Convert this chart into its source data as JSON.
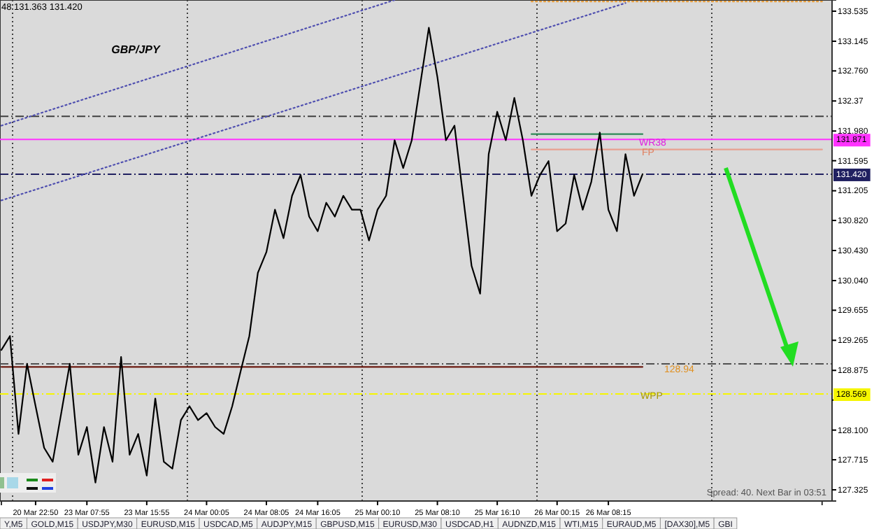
{
  "chart_data": {
    "type": "line",
    "title": "GBP/JPY",
    "categories": [
      null,
      null,
      null,
      null,
      "20 Mar 22:50",
      null,
      null,
      null,
      null,
      null,
      "23 Mar 07:55",
      null,
      null,
      null,
      null,
      null,
      null,
      "23 Mar 15:55",
      null,
      null,
      null,
      null,
      null,
      null,
      "24 Mar 00:05",
      null,
      null,
      null,
      null,
      null,
      null,
      "24 Mar 08:05",
      null,
      null,
      null,
      null,
      null,
      "24 Mar 16:05",
      null,
      null,
      null,
      null,
      null,
      null,
      "25 Mar 00:10",
      null,
      null,
      null,
      null,
      null,
      null,
      "25 Mar 08:10",
      null,
      null,
      null,
      null,
      null,
      null,
      "25 Mar 16:10",
      null,
      null,
      null,
      null,
      null,
      null,
      "26 Mar 00:15",
      null,
      null,
      null,
      null,
      null,
      "26 Mar 08:15",
      null,
      null,
      null,
      null,
      null,
      null,
      null,
      null,
      null,
      null,
      null,
      null,
      null,
      null,
      null,
      null,
      null,
      null,
      null,
      null,
      null,
      null,
      null,
      null,
      null
    ],
    "ylim": [
      127.18,
      133.68
    ],
    "yticks": [
      133.535,
      133.145,
      {
        "value": 132.76,
        "label": "132.760"
      },
      132.37,
      {
        "value": 131.98,
        "label": "131.980"
      },
      131.595,
      131.205,
      {
        "value": 130.82,
        "label": "130.820"
      },
      {
        "value": 130.43,
        "label": "130.430"
      },
      {
        "value": 130.04,
        "label": "130.040"
      },
      129.655,
      129.265,
      128.875,
      {
        "value": 128.49,
        "label": null
      },
      {
        "value": 128.1,
        "label": "128.100"
      },
      127.715,
      127.325
    ],
    "series": [
      {
        "color": "#000000",
        "line_style": "solid",
        "values": [
          129.14,
          129.32,
          128.05,
          128.96,
          128.41,
          127.87,
          127.69,
          128.32,
          128.96,
          127.78,
          128.14,
          127.42,
          128.14,
          127.69,
          129.05,
          127.78,
          128.05,
          127.51,
          128.51,
          127.69,
          127.6,
          128.23,
          128.41,
          128.23,
          128.32,
          128.14,
          128.05,
          128.41,
          128.87,
          129.32,
          130.14,
          130.41,
          130.96,
          130.59,
          131.14,
          131.41,
          130.87,
          130.68,
          131.05,
          130.87,
          131.14,
          130.96,
          130.96,
          130.56,
          130.96,
          131.14,
          131.86,
          131.5,
          131.86,
          132.59,
          133.32,
          132.68,
          131.86,
          132.05,
          131.14,
          130.23,
          129.87,
          131.68,
          132.23,
          131.86,
          132.41,
          131.86,
          131.14,
          131.41,
          131.59,
          130.68,
          130.78,
          131.41,
          130.96,
          131.32,
          131.96,
          130.96,
          130.68,
          131.68,
          131.14,
          131.42,
          null,
          null,
          null,
          null,
          null,
          null,
          null,
          null,
          null,
          null,
          null,
          null,
          null,
          null,
          null,
          null,
          null,
          null,
          null,
          null,
          null
        ]
      },
      {
        "color": "#5050b0",
        "line_style": "dotted",
        "values": [
          132.05,
          null,
          null,
          null,
          null,
          null,
          null,
          null,
          null,
          null,
          null,
          null,
          null,
          null,
          null,
          null,
          null,
          null,
          null,
          null,
          null,
          null,
          null,
          null,
          null,
          null,
          null,
          null,
          null,
          null,
          null,
          null,
          null,
          null,
          null,
          null,
          null,
          null,
          null,
          null,
          null,
          null,
          null,
          null,
          null,
          null,
          133.68,
          null,
          null,
          null,
          null,
          null,
          null,
          null,
          null,
          null,
          null,
          null,
          null,
          null,
          null,
          null,
          null,
          null,
          null,
          null,
          null,
          null,
          null,
          null,
          null,
          null,
          null,
          null,
          null,
          null,
          null,
          null,
          null,
          null,
          null,
          null,
          null,
          null,
          null,
          null,
          null,
          null,
          null,
          null,
          null,
          null,
          null,
          null,
          null,
          null,
          null
        ]
      },
      {
        "color": "#5050b0",
        "line_style": "dotted",
        "values": [
          131.08,
          null,
          null,
          null,
          null,
          null,
          null,
          null,
          null,
          null,
          null,
          null,
          null,
          null,
          null,
          null,
          null,
          null,
          null,
          null,
          null,
          null,
          null,
          null,
          null,
          null,
          null,
          null,
          null,
          null,
          null,
          null,
          null,
          null,
          null,
          null,
          null,
          null,
          null,
          null,
          null,
          null,
          null,
          null,
          null,
          null,
          null,
          null,
          null,
          null,
          null,
          null,
          null,
          null,
          null,
          null,
          null,
          null,
          null,
          null,
          null,
          null,
          null,
          null,
          null,
          null,
          null,
          null,
          null,
          null,
          null,
          null,
          null,
          133.64,
          null,
          null,
          null,
          null,
          null,
          null,
          null,
          null,
          null,
          null,
          null,
          null,
          null,
          null,
          null,
          null,
          null,
          null,
          null,
          null,
          null,
          null,
          null
        ]
      },
      {
        "color": "#2e8b57",
        "line_style": "solid",
        "values": [
          null,
          null,
          null,
          null,
          null,
          null,
          null,
          null,
          null,
          null,
          null,
          null,
          null,
          null,
          null,
          null,
          null,
          null,
          null,
          null,
          null,
          null,
          null,
          null,
          null,
          null,
          null,
          null,
          null,
          null,
          null,
          null,
          null,
          null,
          null,
          null,
          null,
          null,
          null,
          null,
          null,
          null,
          null,
          null,
          null,
          null,
          null,
          null,
          null,
          null,
          null,
          null,
          null,
          null,
          null,
          null,
          null,
          null,
          null,
          null,
          null,
          null,
          131.94,
          null,
          null,
          null,
          null,
          null,
          null,
          null,
          null,
          null,
          null,
          null,
          null,
          131.94,
          null,
          null,
          null,
          null,
          null,
          null,
          null,
          null,
          null,
          null,
          null,
          null,
          null,
          null,
          null,
          null,
          null,
          null,
          null,
          null,
          null
        ]
      },
      {
        "color": "#e8a090",
        "line_style": "solid",
        "values": [
          null,
          null,
          null,
          null,
          null,
          null,
          null,
          null,
          null,
          null,
          null,
          null,
          null,
          null,
          null,
          null,
          null,
          null,
          null,
          null,
          null,
          null,
          null,
          null,
          null,
          null,
          null,
          null,
          null,
          null,
          null,
          null,
          null,
          null,
          null,
          null,
          null,
          null,
          null,
          null,
          null,
          null,
          null,
          null,
          null,
          null,
          null,
          null,
          null,
          null,
          null,
          null,
          null,
          null,
          null,
          null,
          null,
          null,
          null,
          null,
          null,
          null,
          131.74,
          null,
          null,
          null,
          null,
          null,
          null,
          null,
          null,
          null,
          null,
          null,
          null,
          null,
          null,
          null,
          null,
          null,
          null,
          null,
          null,
          null,
          null,
          null,
          null,
          null,
          null,
          null,
          null,
          null,
          null,
          null,
          null,
          null,
          131.74
        ]
      },
      {
        "color": "#e8a040",
        "line_style": "dotted",
        "values": [
          null,
          null,
          null,
          null,
          null,
          null,
          null,
          null,
          null,
          null,
          null,
          null,
          null,
          null,
          null,
          null,
          null,
          null,
          null,
          null,
          null,
          null,
          null,
          null,
          null,
          null,
          null,
          null,
          null,
          null,
          null,
          null,
          null,
          null,
          null,
          null,
          null,
          null,
          null,
          null,
          null,
          null,
          null,
          null,
          null,
          null,
          null,
          null,
          null,
          null,
          null,
          null,
          null,
          null,
          null,
          null,
          null,
          null,
          null,
          null,
          null,
          null,
          133.66,
          null,
          null,
          null,
          null,
          null,
          null,
          null,
          null,
          null,
          null,
          null,
          null,
          null,
          null,
          null,
          null,
          null,
          null,
          null,
          null,
          null,
          null,
          null,
          null,
          null,
          null,
          null,
          null,
          null,
          null,
          null,
          null,
          null,
          133.66
        ]
      },
      {
        "color": "#6b1a10",
        "line_style": "solid",
        "values": [
          128.92,
          null,
          null,
          null,
          null,
          null,
          null,
          null,
          null,
          null,
          null,
          null,
          null,
          null,
          null,
          null,
          null,
          null,
          null,
          null,
          null,
          null,
          null,
          null,
          null,
          null,
          null,
          null,
          null,
          null,
          null,
          null,
          null,
          null,
          null,
          null,
          null,
          null,
          null,
          null,
          null,
          null,
          null,
          null,
          null,
          null,
          null,
          null,
          null,
          null,
          null,
          null,
          null,
          null,
          null,
          null,
          null,
          null,
          null,
          null,
          null,
          null,
          null,
          null,
          null,
          null,
          null,
          null,
          null,
          null,
          null,
          null,
          null,
          null,
          null,
          128.92,
          null,
          null,
          null,
          null,
          null,
          null,
          null,
          null,
          null,
          null,
          null,
          null,
          null,
          null,
          null,
          null,
          null,
          null,
          null,
          null,
          null
        ]
      }
    ],
    "ref_lines": [
      {
        "axis": "y",
        "value": 132.17,
        "color": "#404040",
        "line_style": "dashed"
      },
      {
        "axis": "y",
        "value": 131.871,
        "label": "131.871",
        "color": "#ff33ff",
        "line_style": "solid"
      },
      {
        "axis": "y",
        "value": 131.42,
        "label": "131.420",
        "color": "#202060",
        "line_style": "dashed"
      },
      {
        "axis": "y",
        "value": 128.96,
        "color": "#505050",
        "line_style": "dashed"
      },
      {
        "axis": "y",
        "value": 128.569,
        "label": "128.569",
        "color": "#f5f500",
        "line_style": "dashed"
      }
    ],
    "annotations": [
      "48 131.363 131.420",
      "Spread: 40. Next Bar in 03:51",
      "Y,M5",
      "GOLD,M15",
      "USDJPY,M30",
      "EURUSD,M15",
      "USDCAD,M5",
      "AUDJPY,M15",
      "GBPUSD,M15",
      "EURUSD,M30",
      "USDCAD,H1",
      "AUDNZD,M15",
      "WTI,M15",
      "EURAUD,M5",
      "[DAX30],M5",
      "GBI",
      "WR38",
      "FP",
      "128.94",
      "WPP"
    ]
  }
}
